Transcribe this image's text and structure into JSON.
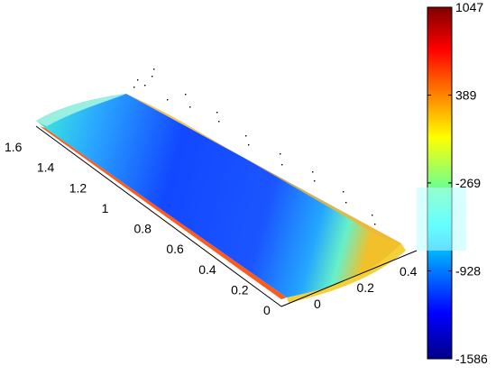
{
  "chart_data": {
    "type": "surface",
    "description_title": "",
    "axes": {
      "y_ticks": [
        "1.6",
        "1.4",
        "1.2",
        "1",
        "0.8",
        "0.6",
        "0.4",
        "0.2",
        "0"
      ],
      "x_ticks": [
        "0",
        "0.2",
        "0.4"
      ]
    },
    "colorbar": {
      "colormap": "jet",
      "range": [
        -1586,
        1047
      ],
      "ticks": [
        "1047",
        "389",
        "-269",
        "-928",
        "-1586"
      ]
    }
  }
}
